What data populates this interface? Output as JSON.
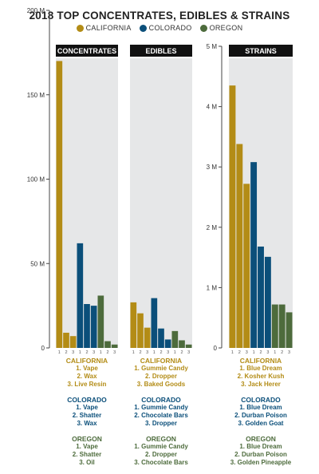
{
  "colors": {
    "california": "#b38c16",
    "colorado": "#0b4f7a",
    "oregon": "#4d6b3c",
    "panel_bg": "#e6e7e8",
    "header_bg": "#111111"
  },
  "legend": [
    {
      "label": "CALIFORNIA",
      "color": "#b38c16"
    },
    {
      "label": "COLORADO",
      "color": "#0b4f7a"
    },
    {
      "label": "OREGON",
      "color": "#4d6b3c"
    }
  ],
  "chart_data": {
    "type": "bar",
    "title": "2018 TOP CONCENTRATES, EDIBLES & STRAINS",
    "rank_labels": [
      "1",
      "2",
      "3"
    ],
    "panels": [
      {
        "name": "CONCENTRATES",
        "axis": "left",
        "ylim": [
          0,
          200
        ],
        "series": [
          {
            "name": "CALIFORNIA",
            "values": [
              170,
              9,
              7
            ]
          },
          {
            "name": "COLORADO",
            "values": [
              62,
              26,
              25
            ]
          },
          {
            "name": "OREGON",
            "values": [
              31,
              4,
              2
            ]
          }
        ],
        "rankings": {
          "california": [
            "CALIFORNIA",
            "1. Vape",
            "2. Wax",
            "3. Live Resin"
          ],
          "colorado": [
            "COLORADO",
            "1. Vape",
            "2. Shatter",
            "3. Wax"
          ],
          "oregon": [
            "OREGON",
            "1. Vape",
            "2. Shatter",
            "3. Oil"
          ]
        }
      },
      {
        "name": "EDIBLES",
        "axis": "left",
        "ylim": [
          0,
          200
        ],
        "series": [
          {
            "name": "CALIFORNIA",
            "values": [
              27,
              20.5,
              12
            ]
          },
          {
            "name": "COLORADO",
            "values": [
              29.5,
              11.5,
              5
            ]
          },
          {
            "name": "OREGON",
            "values": [
              10,
              4.5,
              2
            ]
          }
        ],
        "rankings": {
          "california": [
            "CALIFORNIA",
            "1. Gummie Candy",
            "2. Dropper",
            "3. Baked Goods"
          ],
          "colorado": [
            "COLORADO",
            "1. Gummie Candy",
            "2. Chocolate Bars",
            "3. Dropper"
          ],
          "oregon": [
            "OREGON",
            "1. Gummie Candy",
            "2. Dropper",
            "3. Chocolate Bars"
          ]
        }
      },
      {
        "name": "STRAINS",
        "axis": "right",
        "ylim": [
          0,
          5
        ],
        "series": [
          {
            "name": "CALIFORNIA",
            "values": [
              4.35,
              3.38,
              2.72
            ]
          },
          {
            "name": "COLORADO",
            "values": [
              3.08,
              1.68,
              1.51
            ]
          },
          {
            "name": "OREGON",
            "values": [
              0.72,
              0.72,
              0.59
            ]
          }
        ],
        "rankings": {
          "california": [
            "CALIFORNIA",
            "1. Blue Dream",
            "2. Kosher Kush",
            "3. Jack Herer"
          ],
          "colorado": [
            "COLORADO",
            "1. Blue Dream",
            "2. Durban Poison",
            "3. Golden Goat"
          ],
          "oregon": [
            "OREGON",
            "1. Blue Dream",
            "2. Durban Poison",
            "3. Golden Pineapple"
          ]
        }
      }
    ],
    "axes": {
      "left": {
        "ticks": [
          0,
          50,
          100,
          150,
          200
        ],
        "tick_labels": [
          "0",
          "50 M",
          "100 M",
          "150 M",
          "200 M"
        ]
      },
      "right": {
        "ticks": [
          0,
          1,
          2,
          3,
          4,
          5
        ],
        "tick_labels": [
          "0",
          "1 M",
          "2 M",
          "3 M",
          "4 M",
          "5 M"
        ]
      }
    },
    "grid": false,
    "legend_position": "top-center"
  }
}
